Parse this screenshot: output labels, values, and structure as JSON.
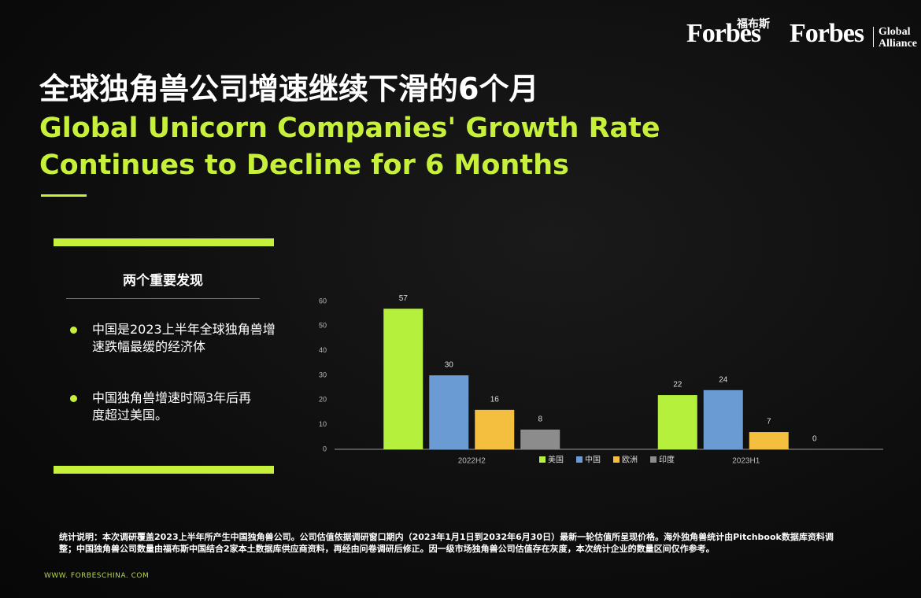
{
  "header": {
    "logo_cn": "福布斯",
    "logo_main": "Forbes",
    "logo_alliance": "Forbes",
    "alliance_line1": "Global",
    "alliance_line2": "Alliance"
  },
  "title_cn": "全球独角兽公司增速继续下滑的6个月",
  "title_en_line1": "Global Unicorn Companies' Growth Rate",
  "title_en_line2": "Continues to Decline for 6 Months",
  "findings": {
    "heading": "两个重要发现",
    "items": [
      "中国是2023上半年全球独角兽增速跌幅最缓的经济体",
      "中国独角兽增速时隔3年后再度超过美国。"
    ]
  },
  "chart_data": {
    "type": "bar",
    "categories": [
      "2022H2",
      "2023H1"
    ],
    "series": [
      {
        "name": "美国",
        "color": "#b4f03c",
        "values": [
          57,
          22
        ]
      },
      {
        "name": "中国",
        "color": "#6a9bd3",
        "values": [
          30,
          24
        ]
      },
      {
        "name": "欧洲",
        "color": "#f4bf3f",
        "values": [
          16,
          7
        ]
      },
      {
        "name": "印度",
        "color": "#8c8c8c",
        "values": [
          8,
          0
        ]
      }
    ],
    "ylim": [
      0,
      60
    ],
    "yticks": [
      0,
      10,
      20,
      30,
      40,
      50,
      60
    ],
    "grid": false,
    "legend": "bottom"
  },
  "footnote": "统计说明：本次调研覆盖2023上半年所产生中国独角兽公司。公司估值依据调研窗口期内（2023年1月1日到2032年6月30日）最新一轮估值所呈现价格。海外独角兽统计由Pitchbook数据库资料调整；中国独角兽公司数量由福布斯中国结合2家本土数据库供应商资料，再经由问卷调研后修正。因一级市场独角兽公司估值存在灰度，本次统计企业的数量区间仅作参考。",
  "website": "WWW. FORBESCHINA. COM"
}
